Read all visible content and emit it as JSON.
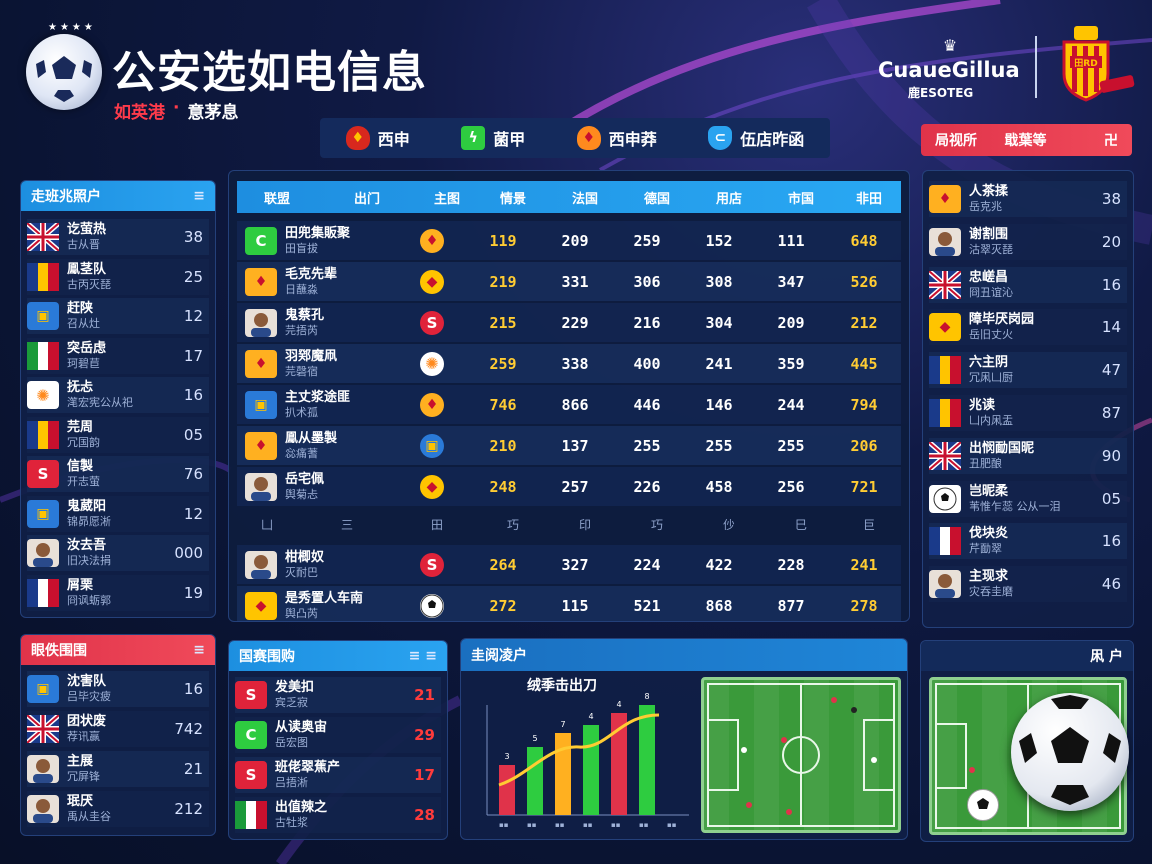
{
  "header": {
    "title": "公安选如电信息",
    "subtitle_red": "如英港",
    "subtitle_sep": "·",
    "subtitle_white": "意茅息",
    "brand_name": "CuaueGillua",
    "brand_sub": "鹿ESOTEG"
  },
  "tabs": [
    {
      "label": "西申",
      "icon": "shield-icon",
      "color": "#ffb020"
    },
    {
      "label": "菌甲",
      "icon": "green-logo-icon",
      "color": "#2ecc40"
    },
    {
      "label": "西申莽",
      "icon": "shield-icon",
      "color": "#ff8a1e"
    },
    {
      "label": "伍店昨函",
      "icon": "blue-badge-icon",
      "color": "#2aa3f0"
    }
  ],
  "top_right_bar": {
    "left": "局视所",
    "mid": "戢葉等",
    "right": "卍"
  },
  "left_panel": {
    "title": "走班兆照户",
    "rows": [
      {
        "name": "讫萤热",
        "sub": "古从晋",
        "value": "38",
        "icon": "uk-flag-icon"
      },
      {
        "name": "鳯茎队",
        "sub": "古丙灭琵",
        "value": "25",
        "icon": "ro-flag-icon"
      },
      {
        "name": "赶陕",
        "sub": "召从灶",
        "value": "12",
        "icon": "blue-badge-icon"
      },
      {
        "name": "突岳虑",
        "sub": "珂碧苣",
        "value": "17",
        "icon": "it-flag-icon"
      },
      {
        "name": "抚忐",
        "sub": "滗宏宪公从祀",
        "value": "16",
        "icon": "orange-logo-icon"
      },
      {
        "name": "芫周",
        "sub": "冗国韵",
        "value": "05",
        "icon": "ro-flag-icon"
      },
      {
        "name": "信製",
        "sub": "开志萤",
        "value": "76",
        "icon": "red-logo-icon"
      },
      {
        "name": "鬼葳阳",
        "sub": "锦昴愿淅",
        "value": "12",
        "icon": "blue-badge-icon"
      },
      {
        "name": "汝去吾",
        "sub": "旧决法捐",
        "value": "000",
        "icon": "player-avatar-icon"
      },
      {
        "name": "屑栗",
        "sub": "冏讽蛎郭",
        "value": "19",
        "icon": "fr-flag-icon"
      }
    ]
  },
  "table": {
    "headers": [
      "联盟",
      "出门",
      "主图",
      "情景",
      "法国",
      "德国",
      "用店",
      "市国",
      "非田"
    ],
    "rows": [
      {
        "team": "田兜集販聚",
        "sub": "田盲拔",
        "c1": "119",
        "c2": "209",
        "c3": "259",
        "c4": "152",
        "c5": "111",
        "c6": "648"
      },
      {
        "team": "毛克先辈",
        "sub": "日蘸淼",
        "c1": "219",
        "c2": "331",
        "c3": "306",
        "c4": "308",
        "c5": "347",
        "c6": "526"
      },
      {
        "team": "鬼蔡孔",
        "sub": "芫捂芮",
        "c1": "215",
        "c2": "229",
        "c3": "216",
        "c4": "304",
        "c5": "209",
        "c6": "212"
      },
      {
        "team": "羽鄈魔凧",
        "sub": "芫磬宿",
        "c1": "259",
        "c2": "338",
        "c3": "400",
        "c4": "241",
        "c5": "359",
        "c6": "445"
      },
      {
        "team": "主丈浆途匪",
        "sub": "扒术孤",
        "c1": "746",
        "c2": "866",
        "c3": "446",
        "c4": "146",
        "c5": "244",
        "c6": "794"
      },
      {
        "team": "鳯从墨製",
        "sub": "惢痛蓍",
        "c1": "210",
        "c2": "137",
        "c3": "255",
        "c4": "255",
        "c5": "255",
        "c6": "206"
      },
      {
        "team": "岳宅佩",
        "sub": "舆菊忐",
        "c1": "248",
        "c2": "257",
        "c3": "226",
        "c4": "458",
        "c5": "256",
        "c6": "721"
      }
    ],
    "subheader": [
      "凵",
      "三",
      "田",
      "巧",
      "印",
      "巧",
      "仯",
      "巳",
      "巨"
    ],
    "rows2": [
      {
        "team": "柑楖奴",
        "sub": "灭耐巴",
        "c1": "264",
        "c2": "327",
        "c3": "224",
        "c4": "422",
        "c5": "228",
        "c6": "241"
      },
      {
        "team": "是秀置人车南",
        "sub": "舆凸芮",
        "c1": "272",
        "c2": "115",
        "c3": "521",
        "c4": "868",
        "c5": "877",
        "c6": "278"
      }
    ]
  },
  "right_panel": {
    "rows": [
      {
        "name": "人茶揉",
        "sub": "岳克兆",
        "value": "38",
        "icon": "shield-icon"
      },
      {
        "name": "谢割围",
        "sub": "沽翠灭琵",
        "value": "20",
        "icon": "player-avatar-icon"
      },
      {
        "name": "忠嵯昌",
        "sub": "冏丑谊沁",
        "value": "16",
        "icon": "uk-flag-icon"
      },
      {
        "name": "障毕厌岗园",
        "sub": "岳旧丈火",
        "value": "14",
        "icon": "yellow-logo-icon"
      },
      {
        "name": "六主阴",
        "sub": "冗凩凵厨",
        "value": "47",
        "icon": "ro-flag-icon"
      },
      {
        "name": "兆读",
        "sub": "凵内凩盂",
        "value": "87",
        "icon": "ro-flag-icon"
      },
      {
        "name": "出悯勔国昵",
        "sub": "丑肥酿",
        "value": "90",
        "icon": "uk-flag-icon"
      },
      {
        "name": "岂昵柔",
        "sub": "苇惟乍蕊 公从一泪",
        "value": "05",
        "icon": "ball-icon"
      },
      {
        "name": "伐块炎",
        "sub": "芹勔翠",
        "value": "16",
        "icon": "fr-flag-icon"
      },
      {
        "name": "主现求",
        "sub": "灾吞圭磨",
        "value": "46",
        "icon": "player-avatar-icon"
      }
    ]
  },
  "bottom_left": {
    "title": "眼佚围围",
    "rows": [
      {
        "name": "沈害队",
        "sub": "吕毕灾疲",
        "value": "16",
        "icon": "blue-badge-icon"
      },
      {
        "name": "团状废",
        "sub": "荐讯赢",
        "value": "742",
        "icon": "uk-flag-icon"
      },
      {
        "name": "主展",
        "sub": "冗屏锋",
        "value": "21",
        "icon": "player-avatar-icon"
      },
      {
        "name": "珉厌",
        "sub": "禹从圭谷",
        "value": "212",
        "icon": "player-avatar-icon"
      }
    ]
  },
  "bottom_mid": {
    "title": "国赛围购",
    "rows": [
      {
        "name": "发美扣",
        "sub": "宾乏寂",
        "value": "21",
        "icon": "red-logo-icon"
      },
      {
        "name": "从读奥宙",
        "sub": "岳宏图",
        "value": "29",
        "icon": "green-logo-icon"
      },
      {
        "name": "班佬翠蕉产",
        "sub": "吕捂淅",
        "value": "17",
        "icon": "red-logo-icon"
      },
      {
        "name": "出值辣之",
        "sub": "古牡浆",
        "value": "28",
        "icon": "it-flag-icon"
      }
    ]
  },
  "chart_panel": {
    "title": "圭阅凌户",
    "chart_title": "绒季击出刀",
    "labels": [
      "3",
      "5",
      "7",
      "4",
      "4",
      "8",
      "8"
    ]
  },
  "right_bottom": {
    "title": "凩 户"
  },
  "colors": {
    "accent_blue": "#1e8ee0",
    "accent_red": "#e0334a",
    "gold": "#ffcc33",
    "pitch_green": "#3a9a3a"
  }
}
